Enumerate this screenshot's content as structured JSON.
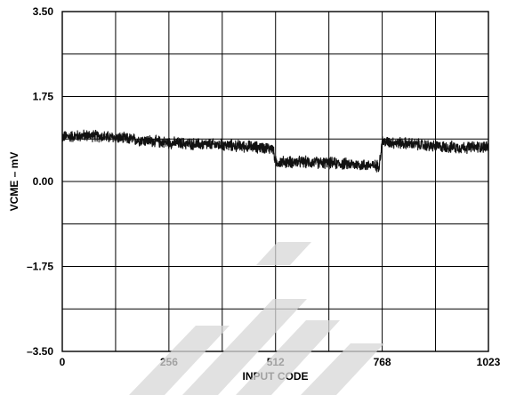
{
  "chart_data": {
    "type": "line",
    "xlabel": "INPUT CODE",
    "ylabel": "VCME – mV",
    "xlim": [
      0,
      1023
    ],
    "ylim": [
      -3.5,
      3.5
    ],
    "grid": true,
    "x_ticks": [
      {
        "value": 0,
        "label": "0"
      },
      {
        "value": 256,
        "label": "256"
      },
      {
        "value": 512,
        "label": "512"
      },
      {
        "value": 768,
        "label": "768"
      },
      {
        "value": 1023,
        "label": "1023"
      }
    ],
    "y_ticks": [
      {
        "value": 3.5,
        "label": "3.50"
      },
      {
        "value": 1.75,
        "label": "1.75"
      },
      {
        "value": 0,
        "label": "0.00"
      },
      {
        "value": -1.75,
        "label": "–1.75"
      },
      {
        "value": -3.5,
        "label": "–3.50"
      }
    ],
    "x_gridlines": [
      0,
      128,
      256,
      384,
      512,
      640,
      768,
      896,
      1023
    ],
    "y_gridlines": [
      3.5,
      2.625,
      1.75,
      0.875,
      0,
      -0.875,
      -1.75,
      -2.625,
      -3.5
    ],
    "series": [
      {
        "color": "#111111",
        "noise": 0.1,
        "x": [
          0,
          64,
          128,
          192,
          256,
          320,
          384,
          448,
          505,
          510,
          512,
          576,
          640,
          704,
          760,
          765,
          768,
          832,
          896,
          960,
          1023
        ],
        "y": [
          0.92,
          0.95,
          0.9,
          0.85,
          0.8,
          0.77,
          0.75,
          0.72,
          0.68,
          0.5,
          0.4,
          0.4,
          0.38,
          0.35,
          0.32,
          0.6,
          0.82,
          0.78,
          0.72,
          0.7,
          0.72
        ]
      }
    ]
  },
  "watermark": {
    "color": "#d7d7d7"
  }
}
